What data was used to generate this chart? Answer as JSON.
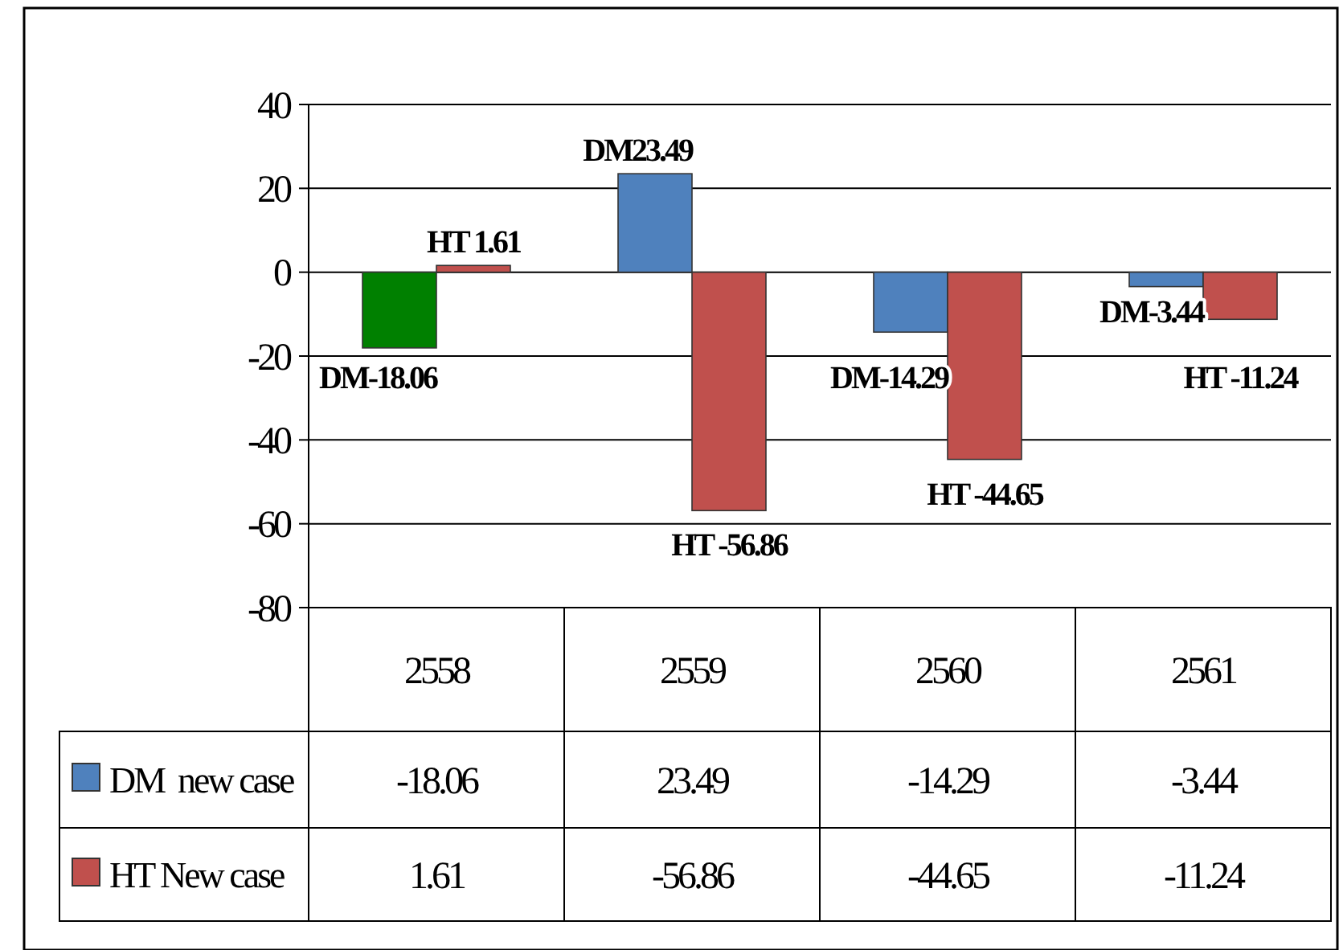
{
  "chart_data": {
    "type": "bar",
    "categories": [
      "2558",
      "2559",
      "2560",
      "2561"
    ],
    "series": [
      {
        "name": "DM  new case",
        "color": "#4f81bd",
        "colors": [
          "#008000",
          "#4f81bd",
          "#4f81bd",
          "#4f81bd"
        ],
        "values": [
          -18.06,
          23.49,
          -14.29,
          -3.44
        ]
      },
      {
        "name": "HT New case",
        "color": "#c0504d",
        "values": [
          1.61,
          -56.86,
          -44.65,
          -11.24
        ]
      }
    ],
    "annotations": [
      {
        "text": "DM-18.06",
        "x": "2558",
        "y": -18.06
      },
      {
        "text": "DM23.49",
        "x": "2559",
        "y": 23.49
      },
      {
        "text": "DM-14.29",
        "x": "2560",
        "y": -14.29
      },
      {
        "text": "DM-3.44",
        "x": "2561",
        "y": -3.44
      },
      {
        "text": "HT 1.61",
        "x": "2558",
        "y": 1.61
      },
      {
        "text": "HT -56.86",
        "x": "2559",
        "y": -56.86
      },
      {
        "text": "HT -44.65",
        "x": "2560",
        "y": -44.65
      },
      {
        "text": "HT -11.24",
        "x": "2561",
        "y": -11.24
      }
    ],
    "ylim": [
      -80,
      40
    ],
    "yticks": [
      -80,
      -60,
      -40,
      -20,
      0,
      20,
      40
    ],
    "grid": "y",
    "legend": "bottom",
    "data_labels": true
  }
}
